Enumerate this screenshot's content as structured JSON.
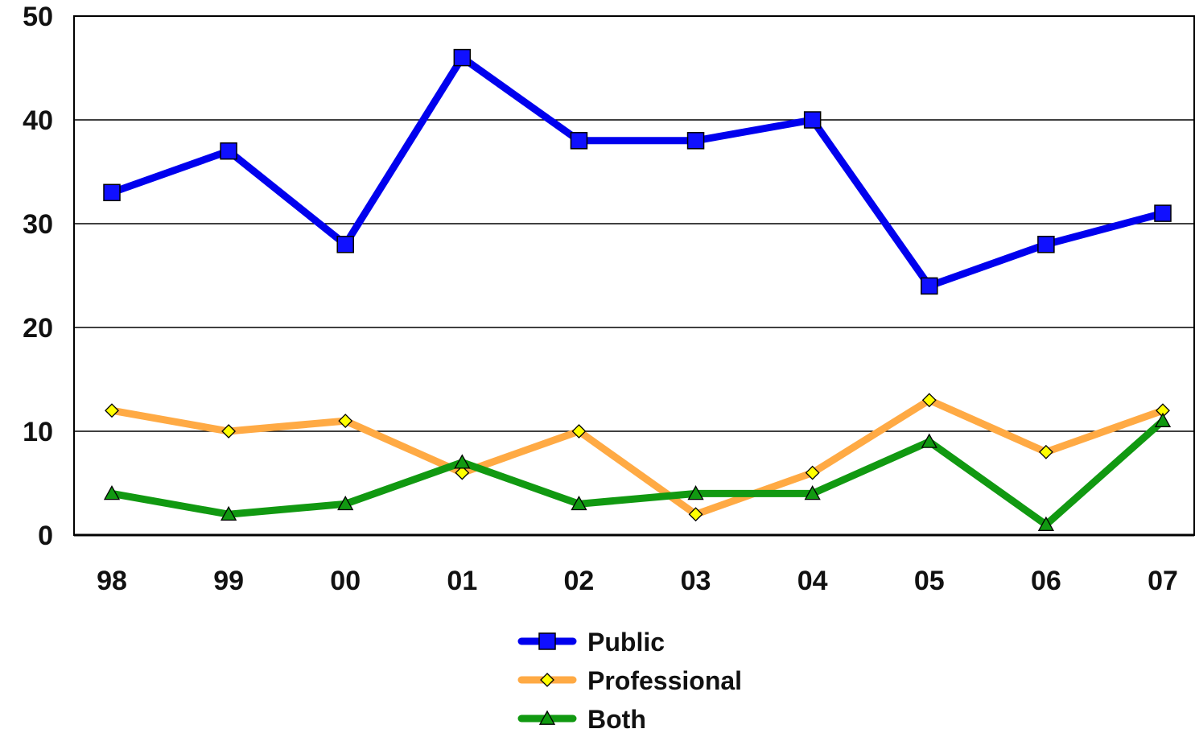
{
  "chart_data": {
    "type": "line",
    "title": "",
    "xlabel": "",
    "ylabel": "",
    "categories": [
      "98",
      "99",
      "00",
      "01",
      "02",
      "03",
      "04",
      "05",
      "06",
      "07"
    ],
    "ylim": [
      0,
      50
    ],
    "yticks": [
      "0",
      "10",
      "20",
      "30",
      "40",
      "50"
    ],
    "grid": "horizontal",
    "legend_position": "bottom-center",
    "series": [
      {
        "name": "Public",
        "color": "#0000ee",
        "marker": "square",
        "marker_fill": "#1010ff",
        "values": [
          33,
          37,
          28,
          46,
          38,
          38,
          40,
          24,
          28,
          31
        ]
      },
      {
        "name": "Professional",
        "color": "#ffaa44",
        "marker": "diamond",
        "marker_fill": "#ffff00",
        "values": [
          12,
          10,
          11,
          6,
          10,
          2,
          6,
          13,
          8,
          12
        ]
      },
      {
        "name": "Both",
        "color": "#119911",
        "marker": "triangle",
        "marker_fill": "#119911",
        "values": [
          4,
          2,
          3,
          7,
          3,
          4,
          4,
          9,
          1,
          11
        ]
      }
    ]
  }
}
